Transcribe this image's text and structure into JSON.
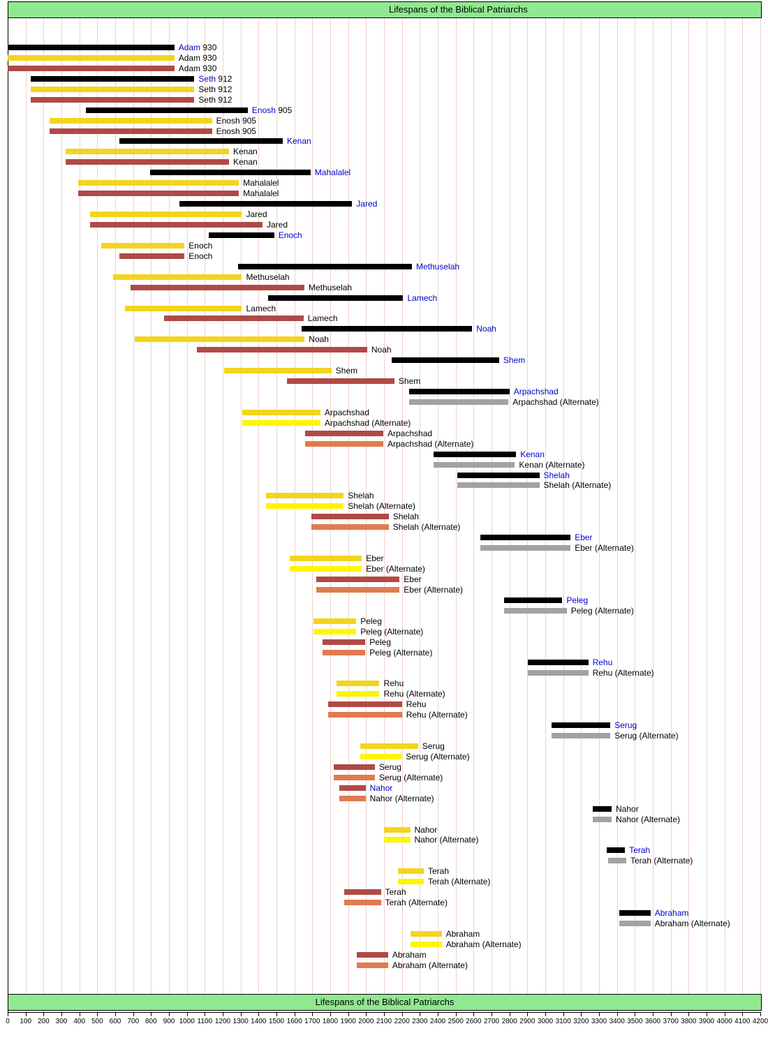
{
  "title": "Lifespans of the Biblical Patriarchs",
  "footer": "Lifespans of the Biblical Patriarchs",
  "colors": {
    "black": "#000000",
    "gray": "#A2A2A2",
    "yellow": "#F4D41F",
    "yellow2": "#FFF500",
    "red": "#B04A46",
    "orange": "#E17A50",
    "banner_green": "#90E890",
    "gridline": "#F0D2C6",
    "link_blue": "#0000CC"
  },
  "chart_data": {
    "type": "bar",
    "subtype": "timeline-gantt",
    "title": "Lifespans of the Biblical Patriarchs",
    "xlabel": "",
    "ylabel": "",
    "x_axis": {
      "min": 0,
      "max": 4200,
      "step": 100,
      "tick_labels": "0,100,200,...,4200"
    },
    "grid": true,
    "legend": false,
    "bars": [
      {
        "name": "Adam",
        "color": "black",
        "start": 0,
        "end": 930,
        "suffix": "930",
        "link": true
      },
      {
        "name": "Adam",
        "color": "yellow",
        "start": 0,
        "end": 930,
        "suffix": "930"
      },
      {
        "name": "Adam",
        "color": "red",
        "start": 0,
        "end": 930,
        "suffix": "930"
      },
      {
        "name": "Seth",
        "color": "black",
        "start": 130,
        "end": 1042,
        "suffix": "912",
        "link": true
      },
      {
        "name": "Seth",
        "color": "yellow",
        "start": 130,
        "end": 1042,
        "suffix": "912"
      },
      {
        "name": "Seth",
        "color": "red",
        "start": 130,
        "end": 1042,
        "suffix": "912"
      },
      {
        "name": "Enosh",
        "color": "black",
        "start": 435,
        "end": 1340,
        "suffix": "905",
        "link": true
      },
      {
        "name": "Enosh",
        "color": "yellow",
        "start": 235,
        "end": 1140,
        "suffix": "905"
      },
      {
        "name": "Enosh",
        "color": "red",
        "start": 235,
        "end": 1140,
        "suffix": "905"
      },
      {
        "name": "Kenan",
        "color": "black",
        "start": 625,
        "end": 1535,
        "link": true
      },
      {
        "name": "Kenan",
        "color": "yellow",
        "start": 325,
        "end": 1235
      },
      {
        "name": "Kenan",
        "color": "red",
        "start": 325,
        "end": 1235
      },
      {
        "name": "Mahalalel",
        "color": "black",
        "start": 795,
        "end": 1690,
        "link": true
      },
      {
        "name": "Mahalalel",
        "color": "yellow",
        "start": 395,
        "end": 1290
      },
      {
        "name": "Mahalalel",
        "color": "red",
        "start": 395,
        "end": 1290
      },
      {
        "name": "Jared",
        "color": "black",
        "start": 960,
        "end": 1922,
        "link": true
      },
      {
        "name": "Jared",
        "color": "yellow",
        "start": 460,
        "end": 1307
      },
      {
        "name": "Jared",
        "color": "red",
        "start": 460,
        "end": 1422
      },
      {
        "name": "Enoch",
        "color": "black",
        "start": 1122,
        "end": 1487,
        "link": true
      },
      {
        "name": "Enoch",
        "color": "yellow",
        "start": 522,
        "end": 987
      },
      {
        "name": "Enoch",
        "color": "red",
        "start": 622,
        "end": 987
      },
      {
        "name": "Methuselah",
        "color": "black",
        "start": 1287,
        "end": 2256,
        "link": true
      },
      {
        "name": "Methuselah",
        "color": "yellow",
        "start": 587,
        "end": 1307
      },
      {
        "name": "Methuselah",
        "color": "red",
        "start": 687,
        "end": 1656
      },
      {
        "name": "Lamech",
        "color": "black",
        "start": 1454,
        "end": 2207,
        "link": true
      },
      {
        "name": "Lamech",
        "color": "yellow",
        "start": 654,
        "end": 1307
      },
      {
        "name": "Lamech",
        "color": "red",
        "start": 874,
        "end": 1651
      },
      {
        "name": "Noah",
        "color": "black",
        "start": 1642,
        "end": 2592,
        "link": true
      },
      {
        "name": "Noah",
        "color": "yellow",
        "start": 707,
        "end": 1657
      },
      {
        "name": "Noah",
        "color": "red",
        "start": 1056,
        "end": 2006
      },
      {
        "name": "Shem",
        "color": "black",
        "start": 2142,
        "end": 2742,
        "link": true
      },
      {
        "name": "Shem",
        "color": "yellow",
        "start": 1207,
        "end": 1807
      },
      {
        "name": "Shem",
        "color": "red",
        "start": 1558,
        "end": 2158
      },
      {
        "name": "Arpachshad",
        "color": "black",
        "start": 2242,
        "end": 2800,
        "link": true
      },
      {
        "name": "Arpachshad",
        "color": "gray",
        "start": 2242,
        "end": 2795,
        "alt": true
      },
      {
        "name": "Arpachshad",
        "color": "yellow",
        "start": 1307,
        "end": 1745
      },
      {
        "name": "Arpachshad",
        "color": "yellow2",
        "start": 1307,
        "end": 1745,
        "alt": true
      },
      {
        "name": "Arpachshad",
        "color": "red",
        "start": 1658,
        "end": 2096
      },
      {
        "name": "Arpachshad",
        "color": "orange",
        "start": 1658,
        "end": 2096,
        "alt": true
      },
      {
        "name": "Kenan",
        "color": "black",
        "start": 2377,
        "end": 2837,
        "link": true
      },
      {
        "name": "Kenan",
        "color": "gray",
        "start": 2377,
        "end": 2830,
        "alt": true
      },
      {
        "name": "Shelah",
        "color": "black",
        "start": 2507,
        "end": 2967,
        "link": true
      },
      {
        "name": "Shelah",
        "color": "gray",
        "start": 2507,
        "end": 2967,
        "alt": true
      },
      {
        "name": "Shelah",
        "color": "yellow",
        "start": 1442,
        "end": 1875
      },
      {
        "name": "Shelah",
        "color": "yellow2",
        "start": 1442,
        "end": 1875,
        "alt": true
      },
      {
        "name": "Shelah",
        "color": "red",
        "start": 1693,
        "end": 2126
      },
      {
        "name": "Shelah",
        "color": "orange",
        "start": 1693,
        "end": 2126,
        "alt": true
      },
      {
        "name": "Eber",
        "color": "black",
        "start": 2637,
        "end": 3141,
        "link": true
      },
      {
        "name": "Eber",
        "color": "gray",
        "start": 2637,
        "end": 3141,
        "alt": true
      },
      {
        "name": "Eber",
        "color": "yellow",
        "start": 1572,
        "end": 1976
      },
      {
        "name": "Eber",
        "color": "yellow2",
        "start": 1572,
        "end": 1976,
        "alt": true
      },
      {
        "name": "Eber",
        "color": "red",
        "start": 1723,
        "end": 2187
      },
      {
        "name": "Eber",
        "color": "orange",
        "start": 1723,
        "end": 2187,
        "alt": true
      },
      {
        "name": "Peleg",
        "color": "black",
        "start": 2771,
        "end": 3095,
        "link": true
      },
      {
        "name": "Peleg",
        "color": "gray",
        "start": 2771,
        "end": 3120,
        "alt": true
      },
      {
        "name": "Peleg",
        "color": "yellow",
        "start": 1706,
        "end": 1945
      },
      {
        "name": "Peleg",
        "color": "yellow2",
        "start": 1706,
        "end": 1945,
        "alt": true
      },
      {
        "name": "Peleg",
        "color": "red",
        "start": 1757,
        "end": 1996
      },
      {
        "name": "Peleg",
        "color": "orange",
        "start": 1757,
        "end": 1996,
        "alt": true
      },
      {
        "name": "Rehu",
        "color": "black",
        "start": 2901,
        "end": 3240,
        "link": true
      },
      {
        "name": "Rehu",
        "color": "gray",
        "start": 2901,
        "end": 3240,
        "alt": true
      },
      {
        "name": "Rehu",
        "color": "yellow",
        "start": 1836,
        "end": 2075
      },
      {
        "name": "Rehu",
        "color": "yellow2",
        "start": 1836,
        "end": 2075,
        "alt": true
      },
      {
        "name": "Rehu",
        "color": "red",
        "start": 1787,
        "end": 2200
      },
      {
        "name": "Rehu",
        "color": "orange",
        "start": 1787,
        "end": 2200,
        "alt": true
      },
      {
        "name": "Serug",
        "color": "black",
        "start": 3033,
        "end": 3363,
        "link": true
      },
      {
        "name": "Serug",
        "color": "gray",
        "start": 3033,
        "end": 3363,
        "alt": true
      },
      {
        "name": "Serug",
        "color": "yellow",
        "start": 1968,
        "end": 2290
      },
      {
        "name": "Serug",
        "color": "yellow2",
        "start": 1968,
        "end": 2198,
        "alt": true
      },
      {
        "name": "Serug",
        "color": "red",
        "start": 1819,
        "end": 2049
      },
      {
        "name": "Serug",
        "color": "orange",
        "start": 1819,
        "end": 2049,
        "alt": true
      },
      {
        "name": "Nahor",
        "color": "red",
        "start": 1849,
        "end": 1997,
        "link": true
      },
      {
        "name": "Nahor",
        "color": "orange",
        "start": 1849,
        "end": 1997,
        "alt": true
      },
      {
        "name": "Nahor",
        "color": "black",
        "start": 3265,
        "end": 3370
      },
      {
        "name": "Nahor",
        "color": "gray",
        "start": 3265,
        "end": 3370,
        "alt": true
      },
      {
        "name": "Nahor",
        "color": "yellow",
        "start": 2098,
        "end": 2246
      },
      {
        "name": "Nahor",
        "color": "yellow2",
        "start": 2098,
        "end": 2246,
        "alt": true
      },
      {
        "name": "Terah",
        "color": "black",
        "start": 3343,
        "end": 3445,
        "link": true
      },
      {
        "name": "Terah",
        "color": "gray",
        "start": 3350,
        "end": 3452,
        "alt": true
      },
      {
        "name": "Terah",
        "color": "yellow",
        "start": 2177,
        "end": 2322
      },
      {
        "name": "Terah",
        "color": "yellow2",
        "start": 2177,
        "end": 2322,
        "alt": true
      },
      {
        "name": "Terah",
        "color": "red",
        "start": 1878,
        "end": 2083
      },
      {
        "name": "Terah",
        "color": "orange",
        "start": 1878,
        "end": 2083,
        "alt": true
      },
      {
        "name": "Abraham",
        "color": "black",
        "start": 3414,
        "end": 3587,
        "link": true
      },
      {
        "name": "Abraham",
        "color": "gray",
        "start": 3414,
        "end": 3587,
        "alt": true
      },
      {
        "name": "Abraham",
        "color": "yellow",
        "start": 2247,
        "end": 2422
      },
      {
        "name": "Abraham",
        "color": "yellow2",
        "start": 2247,
        "end": 2422,
        "alt": true
      },
      {
        "name": "Abraham",
        "color": "red",
        "start": 1948,
        "end": 2123
      },
      {
        "name": "Abraham",
        "color": "orange",
        "start": 1948,
        "end": 2123,
        "alt": true
      }
    ],
    "alt_label_suffix": " (Alternate)"
  }
}
